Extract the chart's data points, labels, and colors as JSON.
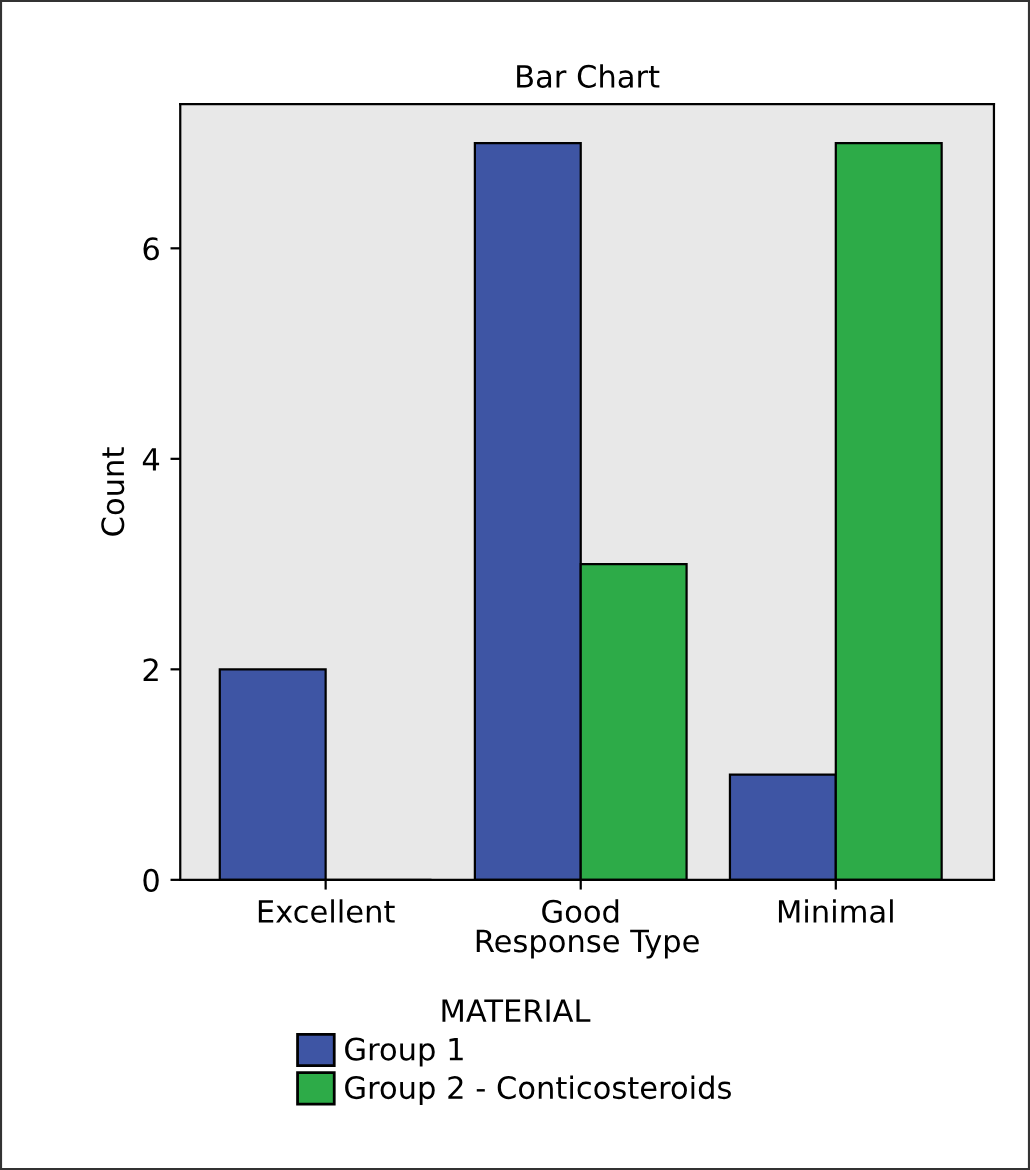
{
  "chart_data": {
    "type": "bar",
    "title": "Bar Chart",
    "xlabel": "Response Type",
    "ylabel": "Count",
    "categories": [
      "Excellent",
      "Good",
      "Minimal"
    ],
    "series": [
      {
        "name": "Group 1",
        "color": "#3e55a4",
        "values": [
          2,
          7,
          1
        ]
      },
      {
        "name": "Group 2 - Conticosteroids",
        "color": "#2dab48",
        "values": [
          0,
          3,
          7
        ]
      }
    ],
    "legend_title": "MATERIAL",
    "legend": "bottom",
    "ylim": [
      0,
      7.37
    ],
    "yticks": [
      0,
      2,
      4,
      6
    ],
    "grid": false
  }
}
